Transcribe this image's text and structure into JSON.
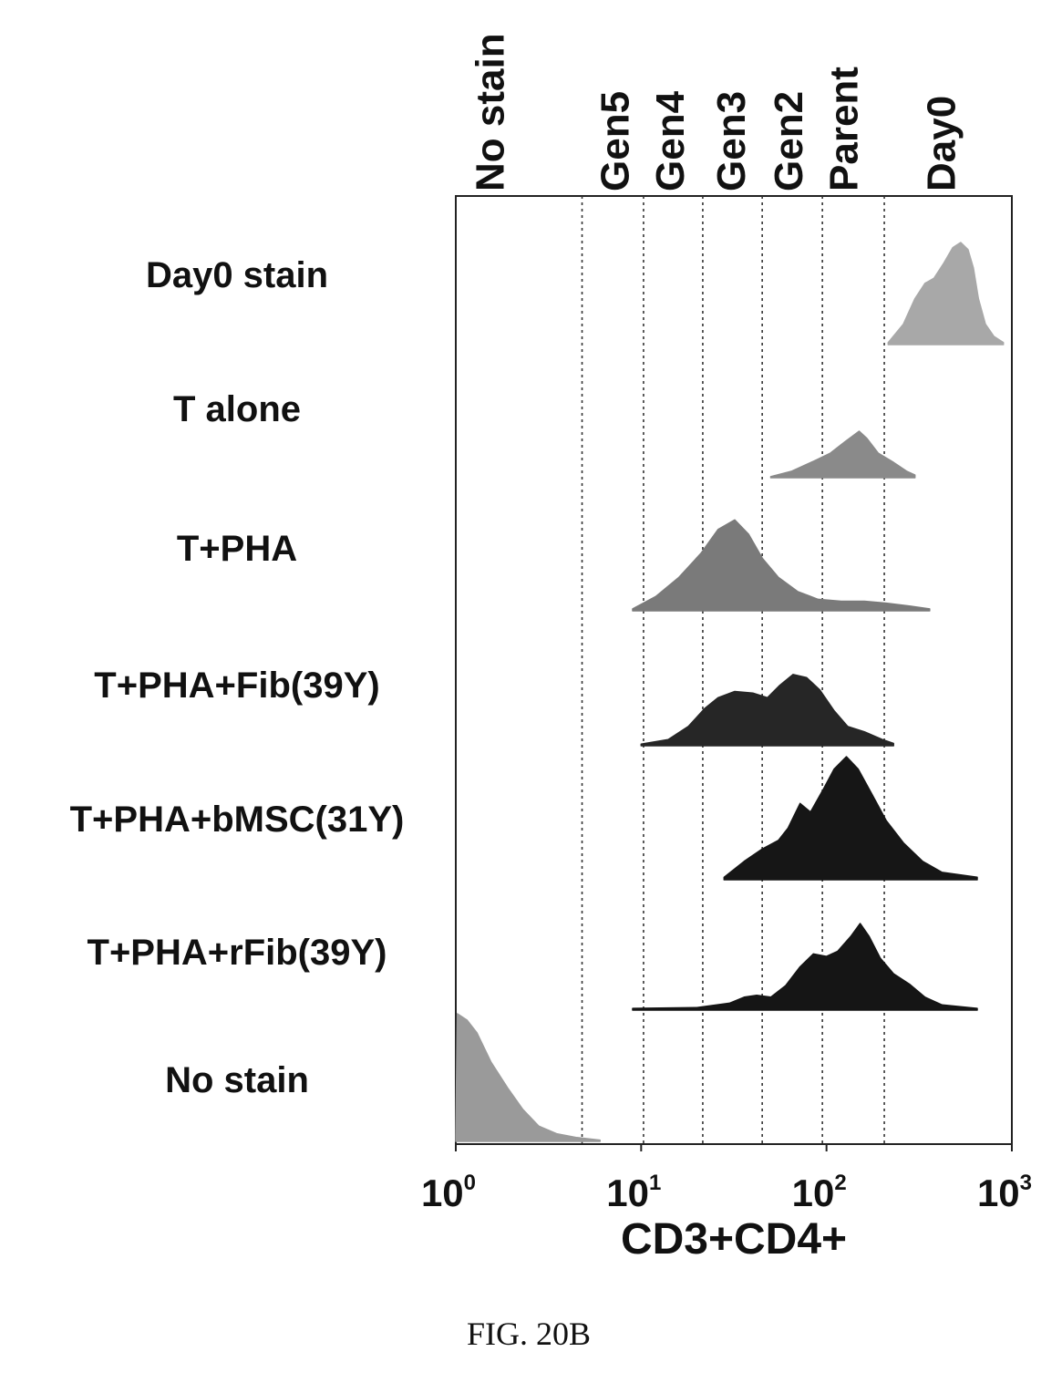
{
  "figure_caption": "FIG. 20B",
  "chart_data": {
    "type": "histogram-overlay",
    "xlabel": "CD3+CD4+",
    "x_scale": "log10",
    "xlim": [
      1,
      1000
    ],
    "x_ticks": [
      {
        "value": 1,
        "base": "10",
        "exp": "0"
      },
      {
        "value": 10,
        "base": "10",
        "exp": "1"
      },
      {
        "value": 100,
        "base": "10",
        "exp": "2"
      },
      {
        "value": 1000,
        "base": "10",
        "exp": "3"
      }
    ],
    "gate_labels": [
      {
        "label": "No stain",
        "x": 1.55
      },
      {
        "label": "Gen5",
        "x": 7.3
      },
      {
        "label": "Gen4",
        "x": 14.5
      },
      {
        "label": "Gen3",
        "x": 31
      },
      {
        "label": "Gen2",
        "x": 63
      },
      {
        "label": "Parent",
        "x": 125
      },
      {
        "label": "Day0",
        "x": 420
      }
    ],
    "gate_boundaries": [
      4.8,
      10.3,
      21.5,
      45,
      95,
      205
    ],
    "series": [
      {
        "name": "Day0 stain",
        "color": "#a8a8a8",
        "points": [
          [
            215,
            0.02
          ],
          [
            260,
            0.2
          ],
          [
            300,
            0.45
          ],
          [
            340,
            0.6
          ],
          [
            380,
            0.65
          ],
          [
            430,
            0.8
          ],
          [
            480,
            0.95
          ],
          [
            530,
            1.0
          ],
          [
            580,
            0.93
          ],
          [
            620,
            0.75
          ],
          [
            660,
            0.45
          ],
          [
            720,
            0.2
          ],
          [
            800,
            0.08
          ],
          [
            900,
            0.02
          ]
        ]
      },
      {
        "name": "T alone",
        "color": "#8a8a8a",
        "points": [
          [
            50,
            0.02
          ],
          [
            65,
            0.12
          ],
          [
            85,
            0.3
          ],
          [
            105,
            0.45
          ],
          [
            125,
            0.65
          ],
          [
            150,
            0.85
          ],
          [
            165,
            0.72
          ],
          [
            190,
            0.45
          ],
          [
            230,
            0.28
          ],
          [
            270,
            0.12
          ],
          [
            300,
            0.05
          ]
        ]
      },
      {
        "name": "T+PHA",
        "color": "#7a7a7a",
        "points": [
          [
            9,
            0.02
          ],
          [
            12,
            0.15
          ],
          [
            16,
            0.35
          ],
          [
            21,
            0.6
          ],
          [
            26,
            0.85
          ],
          [
            32,
            0.95
          ],
          [
            38,
            0.8
          ],
          [
            45,
            0.55
          ],
          [
            55,
            0.35
          ],
          [
            70,
            0.2
          ],
          [
            90,
            0.12
          ],
          [
            120,
            0.1
          ],
          [
            160,
            0.1
          ],
          [
            210,
            0.08
          ],
          [
            280,
            0.05
          ],
          [
            360,
            0.02
          ]
        ]
      },
      {
        "name": "T+PHA+Fib(39Y)",
        "color": "#262626",
        "points": [
          [
            10,
            0.02
          ],
          [
            14,
            0.08
          ],
          [
            18,
            0.25
          ],
          [
            22,
            0.48
          ],
          [
            26,
            0.62
          ],
          [
            32,
            0.7
          ],
          [
            40,
            0.68
          ],
          [
            48,
            0.62
          ],
          [
            56,
            0.78
          ],
          [
            66,
            0.92
          ],
          [
            78,
            0.88
          ],
          [
            92,
            0.72
          ],
          [
            110,
            0.45
          ],
          [
            130,
            0.25
          ],
          [
            160,
            0.18
          ],
          [
            200,
            0.08
          ],
          [
            230,
            0.03
          ]
        ]
      },
      {
        "name": "T+PHA+bMSC(31Y)",
        "color": "#161616",
        "points": [
          [
            28,
            0.02
          ],
          [
            36,
            0.15
          ],
          [
            45,
            0.25
          ],
          [
            55,
            0.32
          ],
          [
            62,
            0.42
          ],
          [
            72,
            0.62
          ],
          [
            82,
            0.55
          ],
          [
            95,
            0.72
          ],
          [
            110,
            0.9
          ],
          [
            128,
            1.0
          ],
          [
            148,
            0.9
          ],
          [
            175,
            0.7
          ],
          [
            210,
            0.48
          ],
          [
            260,
            0.3
          ],
          [
            330,
            0.15
          ],
          [
            420,
            0.06
          ],
          [
            650,
            0.02
          ]
        ]
      },
      {
        "name": "T+PHA+rFib(39Y)",
        "color": "#151515",
        "points": [
          [
            9,
            0.02
          ],
          [
            20,
            0.03
          ],
          [
            30,
            0.08
          ],
          [
            36,
            0.15
          ],
          [
            42,
            0.17
          ],
          [
            50,
            0.15
          ],
          [
            60,
            0.28
          ],
          [
            72,
            0.5
          ],
          [
            85,
            0.65
          ],
          [
            100,
            0.62
          ],
          [
            115,
            0.68
          ],
          [
            135,
            0.85
          ],
          [
            152,
            1.0
          ],
          [
            170,
            0.85
          ],
          [
            195,
            0.6
          ],
          [
            230,
            0.42
          ],
          [
            280,
            0.3
          ],
          [
            340,
            0.15
          ],
          [
            420,
            0.06
          ],
          [
            650,
            0.02
          ]
        ]
      },
      {
        "name": "No stain",
        "color": "#9a9a9a",
        "points": [
          [
            1,
            0.05
          ],
          [
            1.02,
            1.0
          ],
          [
            1.15,
            0.95
          ],
          [
            1.3,
            0.85
          ],
          [
            1.55,
            0.62
          ],
          [
            1.9,
            0.42
          ],
          [
            2.3,
            0.25
          ],
          [
            2.8,
            0.12
          ],
          [
            3.5,
            0.06
          ],
          [
            4.5,
            0.03
          ],
          [
            6,
            0.01
          ]
        ]
      }
    ]
  }
}
